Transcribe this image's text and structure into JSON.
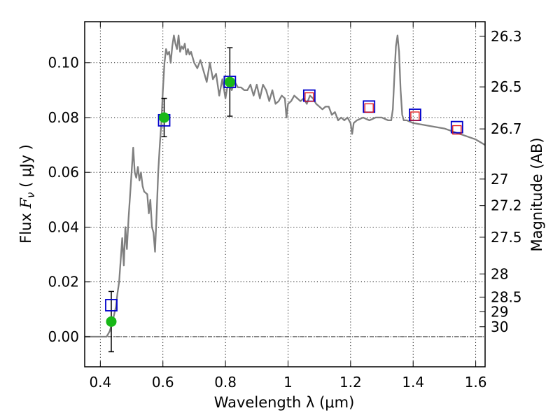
{
  "chart_data": {
    "type": "scatter",
    "xlabel": "Wavelength  λ (μm)",
    "ylabel": "Flux  F_ν  ( μJy )",
    "ylabel_parts": {
      "prefix": "Flux ",
      "symbol": "F",
      "subscript": "ν",
      "suffix": "  ( μJy )"
    },
    "y2label": "Magnitude (AB)",
    "xlim": [
      0.35,
      1.63
    ],
    "ylim": [
      -0.011,
      0.115
    ],
    "grid": true,
    "x_ticks": [
      {
        "value": 0.4,
        "label": "0.4"
      },
      {
        "value": 0.6,
        "label": "0.6"
      },
      {
        "value": 0.8,
        "label": "0.8"
      },
      {
        "value": 1.0,
        "label": "1"
      },
      {
        "value": 1.2,
        "label": "1.2"
      },
      {
        "value": 1.4,
        "label": "1.4"
      },
      {
        "value": 1.6,
        "label": "1.6"
      }
    ],
    "y_ticks": [
      {
        "value": 0.0,
        "label": "0.00"
      },
      {
        "value": 0.02,
        "label": "0.02"
      },
      {
        "value": 0.04,
        "label": "0.04"
      },
      {
        "value": 0.06,
        "label": "0.06"
      },
      {
        "value": 0.08,
        "label": "0.08"
      },
      {
        "value": 0.1,
        "label": "0.10"
      }
    ],
    "mag_ticks": [
      {
        "mag": 26.3,
        "label": "26.3"
      },
      {
        "mag": 26.5,
        "label": "26.5"
      },
      {
        "mag": 26.7,
        "label": "26.7"
      },
      {
        "mag": 27.0,
        "label": "27"
      },
      {
        "mag": 27.2,
        "label": "27.2"
      },
      {
        "mag": 27.5,
        "label": "27.5"
      },
      {
        "mag": 28.0,
        "label": "28"
      },
      {
        "mag": 28.5,
        "label": "28.5"
      },
      {
        "mag": 29.0,
        "label": "29"
      },
      {
        "mag": 30.0,
        "label": "30"
      }
    ],
    "model_sed": {
      "name": "model SED",
      "color": "#808080",
      "x": [
        0.35,
        0.38,
        0.4,
        0.42,
        0.43,
        0.44,
        0.45,
        0.455,
        0.46,
        0.465,
        0.47,
        0.475,
        0.48,
        0.485,
        0.49,
        0.5,
        0.505,
        0.51,
        0.515,
        0.52,
        0.525,
        0.53,
        0.535,
        0.54,
        0.55,
        0.555,
        0.56,
        0.565,
        0.57,
        0.575,
        0.58,
        0.585,
        0.59,
        0.595,
        0.6,
        0.605,
        0.61,
        0.615,
        0.62,
        0.625,
        0.63,
        0.635,
        0.64,
        0.645,
        0.65,
        0.655,
        0.66,
        0.665,
        0.67,
        0.675,
        0.68,
        0.685,
        0.69,
        0.7,
        0.71,
        0.72,
        0.73,
        0.74,
        0.75,
        0.76,
        0.77,
        0.78,
        0.79,
        0.8,
        0.81,
        0.82,
        0.83,
        0.84,
        0.85,
        0.86,
        0.87,
        0.88,
        0.89,
        0.9,
        0.91,
        0.92,
        0.93,
        0.94,
        0.95,
        0.96,
        0.97,
        0.98,
        0.99,
        0.995,
        1.0,
        1.01,
        1.02,
        1.03,
        1.04,
        1.05,
        1.06,
        1.07,
        1.08,
        1.09,
        1.1,
        1.11,
        1.12,
        1.13,
        1.14,
        1.15,
        1.16,
        1.17,
        1.18,
        1.19,
        1.2,
        1.205,
        1.21,
        1.22,
        1.24,
        1.26,
        1.28,
        1.3,
        1.32,
        1.33,
        1.335,
        1.34,
        1.345,
        1.35,
        1.355,
        1.36,
        1.365,
        1.37,
        1.38,
        1.4,
        1.45,
        1.5,
        1.55,
        1.6,
        1.63
      ],
      "y": [
        0.0,
        0.0,
        0.0,
        0.0,
        0.002,
        0.006,
        0.011,
        0.016,
        0.02,
        0.028,
        0.036,
        0.026,
        0.04,
        0.032,
        0.043,
        0.06,
        0.069,
        0.06,
        0.058,
        0.062,
        0.057,
        0.06,
        0.055,
        0.053,
        0.052,
        0.045,
        0.05,
        0.04,
        0.038,
        0.031,
        0.045,
        0.06,
        0.07,
        0.078,
        0.09,
        0.1,
        0.105,
        0.103,
        0.104,
        0.1,
        0.106,
        0.11,
        0.107,
        0.105,
        0.11,
        0.104,
        0.106,
        0.105,
        0.107,
        0.103,
        0.105,
        0.103,
        0.104,
        0.1,
        0.098,
        0.101,
        0.097,
        0.093,
        0.1,
        0.094,
        0.096,
        0.088,
        0.094,
        0.087,
        0.094,
        0.09,
        0.093,
        0.091,
        0.091,
        0.09,
        0.09,
        0.092,
        0.088,
        0.092,
        0.087,
        0.092,
        0.09,
        0.086,
        0.09,
        0.085,
        0.086,
        0.088,
        0.087,
        0.08,
        0.085,
        0.086,
        0.088,
        0.087,
        0.086,
        0.087,
        0.085,
        0.088,
        0.087,
        0.085,
        0.084,
        0.083,
        0.084,
        0.084,
        0.081,
        0.082,
        0.079,
        0.08,
        0.079,
        0.08,
        0.078,
        0.074,
        0.078,
        0.079,
        0.08,
        0.079,
        0.08,
        0.08,
        0.079,
        0.079,
        0.083,
        0.095,
        0.106,
        0.11,
        0.104,
        0.09,
        0.081,
        0.079,
        0.079,
        0.078,
        0.077,
        0.076,
        0.074,
        0.072,
        0.07
      ]
    },
    "series": [
      {
        "name": "blue squares",
        "marker": "square-open",
        "color": "#0000cc",
        "x": [
          0.435,
          0.604,
          0.814,
          1.068,
          1.259,
          1.406,
          1.54
        ],
        "y": [
          0.0115,
          0.079,
          0.093,
          0.088,
          0.084,
          0.081,
          0.0765
        ]
      },
      {
        "name": "green points",
        "marker": "circle",
        "color": "#18b818",
        "x": [
          0.435,
          0.604,
          0.814
        ],
        "y": [
          0.0055,
          0.08,
          0.093
        ],
        "yerr": [
          0.011,
          0.007,
          0.0125
        ]
      },
      {
        "name": "red squares",
        "marker": "square-open-small",
        "color": "#e01010",
        "x": [
          1.068,
          1.259,
          1.406,
          1.54
        ],
        "y": [
          0.0875,
          0.0835,
          0.0805,
          0.0755
        ]
      }
    ]
  }
}
